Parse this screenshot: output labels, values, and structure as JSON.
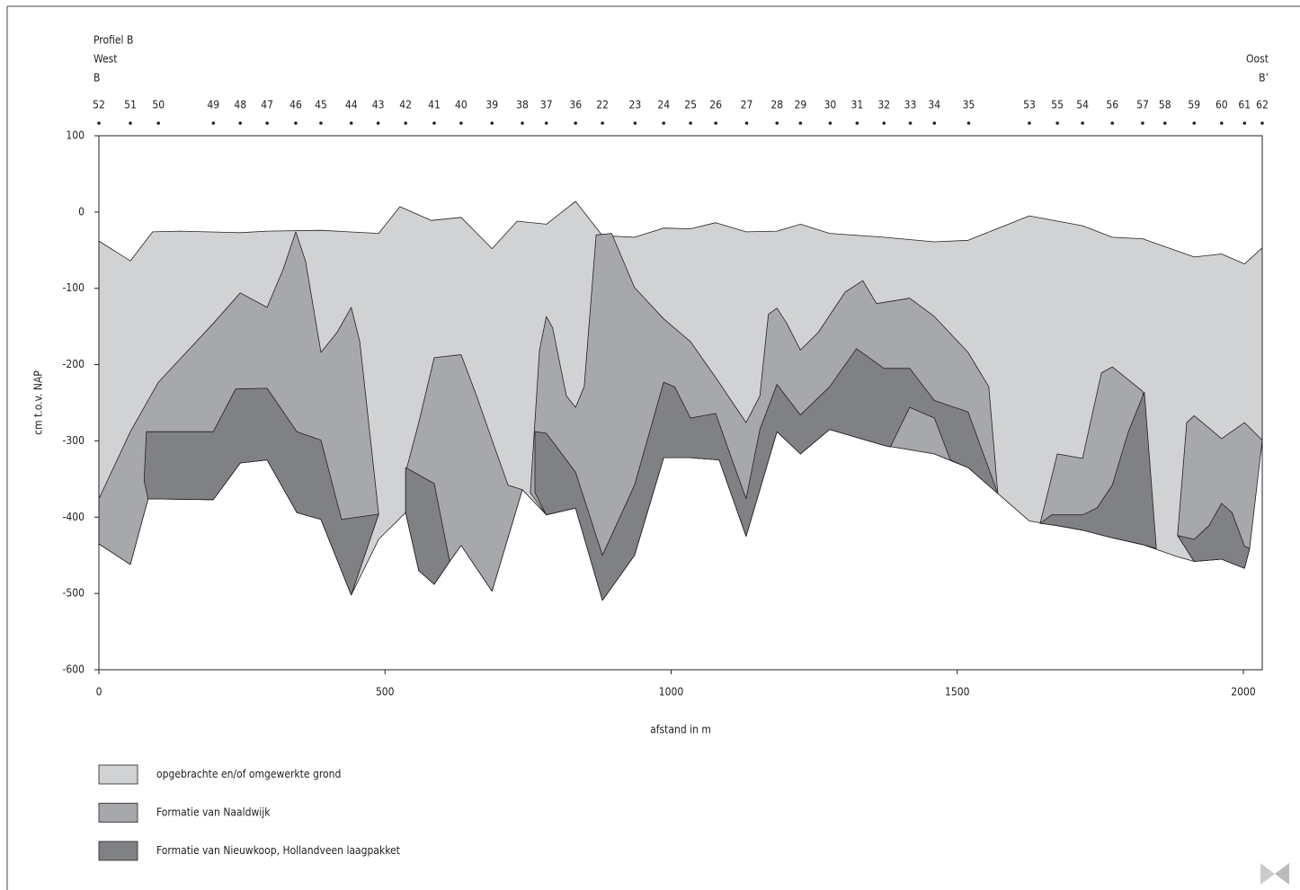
{
  "chart_data": {
    "type": "profile",
    "header": {
      "title": "Profiel B",
      "left_side": "West",
      "left_point": "B",
      "right_side": "Oost",
      "right_point": "B’"
    },
    "ylabel": "cm t.o.v. NAP",
    "xlabel": "afstand in m",
    "xlim": [
      0,
      2033
    ],
    "xticks": [
      0,
      500,
      1000,
      1500,
      2000
    ],
    "ylim": [
      -600,
      100
    ],
    "yticks": [
      100,
      0,
      -100,
      -200,
      -300,
      -400,
      -500,
      -600
    ],
    "boreholes": {
      "labels": [
        "52",
        "51",
        "50",
        "49",
        "48",
        "47",
        "46",
        "45",
        "44",
        "43",
        "42",
        "41",
        "40",
        "39",
        "38",
        "37",
        "36",
        "22",
        "23",
        "24",
        "25",
        "26",
        "27",
        "28",
        "29",
        "30",
        "31",
        "32",
        "33",
        "34",
        "35",
        "53",
        "55",
        "54",
        "56",
        "57",
        "58",
        "59",
        "60",
        "61",
        "62"
      ],
      "x": [
        0,
        55,
        104,
        200,
        247,
        294,
        344,
        388,
        441,
        488,
        536,
        586,
        633,
        687,
        740,
        782,
        833,
        880,
        937,
        987,
        1034,
        1078,
        1132,
        1185,
        1226,
        1278,
        1325,
        1372,
        1418,
        1460,
        1520,
        1626,
        1675,
        1719,
        1771,
        1824,
        1863,
        1914,
        1962,
        2002,
        2033
      ]
    },
    "series": [
      {
        "name": "opgebrachte en/of omgewerkte grond",
        "color": "#d1d2d4",
        "x": [
          0,
          55,
          94,
          141,
          247,
          294,
          388,
          489,
          526,
          581,
          633,
          687,
          731,
          782,
          833,
          880,
          936,
          987,
          1034,
          1078,
          1131,
          1185,
          1226,
          1277,
          1372,
          1460,
          1519,
          1626,
          1719,
          1771,
          1824,
          1914,
          1962,
          2002,
          2033,
          2033,
          2002,
          1962,
          1914,
          1885,
          1824,
          1771,
          1719,
          1626,
          1519,
          1460,
          1372,
          1277,
          1226,
          1185,
          1131,
          1084,
          1034,
          987,
          936,
          880,
          833,
          782,
          740,
          687,
          633,
          613,
          586,
          559,
          536,
          489,
          441,
          388,
          346,
          294,
          247,
          200,
          86,
          55,
          0
        ],
        "values": [
          -38,
          -64,
          -26,
          -25,
          -27,
          -25,
          -24,
          -28,
          7,
          -11,
          -7,
          -48,
          -12,
          -16,
          14,
          -31,
          -33,
          -21,
          -22,
          -14,
          -26,
          -25,
          -16,
          -28,
          -33,
          -39,
          -37,
          -5,
          -18,
          -33,
          -35,
          -59,
          -55,
          -68,
          -47,
          -299,
          -467,
          -455,
          -458,
          -452,
          -436,
          -427,
          -417,
          -405,
          -335,
          -317,
          -306,
          -285,
          -317,
          -288,
          -425,
          -325,
          -322,
          -322,
          -450,
          -509,
          -388,
          -397,
          -364,
          -497,
          -437,
          -458,
          -488,
          -470,
          -394,
          -429,
          -502,
          -403,
          -394,
          -325,
          -329,
          -377,
          -376,
          -462,
          -435
        ]
      },
      {
        "name": "Formatie van Naaldwijk",
        "color": "#a7a8ab",
        "x": [
          0,
          55,
          104,
          200,
          247,
          294,
          322,
          344,
          361,
          388,
          416,
          441,
          456,
          489,
          441,
          388,
          346,
          294,
          247,
          200,
          86,
          55,
          0,
          null,
          536,
          559,
          586,
          633,
          660,
          687,
          715,
          740,
          687,
          633,
          613,
          586,
          559,
          536,
          null,
          754,
          770,
          782,
          793,
          817,
          833,
          848,
          869,
          896,
          936,
          987,
          1034,
          1078,
          1131,
          1155,
          1170,
          1185,
          1202,
          1226,
          1257,
          1304,
          1335,
          1359,
          1417,
          1460,
          1519,
          1555,
          1571,
          1519,
          1460,
          1372,
          1277,
          1226,
          1185,
          1131,
          1084,
          1034,
          987,
          936,
          880,
          833,
          782,
          null,
          1645,
          1675,
          1719,
          1752,
          1771,
          1824,
          1846,
          1824,
          1771,
          1719,
          1675,
          null,
          1885,
          1901,
          1914,
          1962,
          2002,
          2033,
          2011,
          2002,
          1962,
          1914
        ],
        "values": [
          -376,
          -288,
          -223,
          -146,
          -106,
          -125,
          -75,
          -26,
          -64,
          -184,
          -158,
          -125,
          -170,
          -396,
          -502,
          -403,
          -394,
          -325,
          -329,
          -377,
          -376,
          -462,
          -435,
          null,
          -341,
          -276,
          -191,
          -187,
          -241,
          -299,
          -358,
          -364,
          -497,
          -437,
          -458,
          -488,
          -470,
          -394,
          null,
          -368,
          -181,
          -137,
          -152,
          -241,
          -256,
          -229,
          -30,
          -28,
          -99,
          -140,
          -170,
          -217,
          -276,
          -241,
          -134,
          -126,
          -146,
          -181,
          -158,
          -105,
          -90,
          -120,
          -113,
          -137,
          -184,
          -229,
          -369,
          -335,
          -317,
          -306,
          -285,
          -317,
          -288,
          -425,
          -325,
          -322,
          -322,
          -450,
          -509,
          -388,
          -397,
          null,
          -408,
          -317,
          -323,
          -211,
          -203,
          -235,
          -441,
          -436,
          -427,
          -417,
          -411,
          null,
          -424,
          -276,
          -267,
          -297,
          -276,
          -299,
          -441,
          -467,
          -455,
          -458
        ]
      },
      {
        "name": "Formatie van Nieuwkoop, Hollandveen laagpakket",
        "color": "#808184",
        "x": [
          83,
          200,
          239,
          294,
          346,
          388,
          424,
          489,
          441,
          388,
          346,
          294,
          247,
          200,
          86,
          79,
          null,
          536,
          586,
          613,
          586,
          559,
          536,
          null,
          762,
          782,
          833,
          880,
          936,
          987,
          1006,
          1034,
          1078,
          1100,
          1131,
          1155,
          1185,
          1226,
          1277,
          1324,
          1372,
          1417,
          1460,
          1519,
          1571,
          1519,
          1488,
          1460,
          1417,
          1383,
          1372,
          1277,
          1226,
          1185,
          1131,
          1084,
          1034,
          987,
          936,
          880,
          833,
          782,
          762,
          null,
          1645,
          1665,
          1719,
          1744,
          1771,
          1799,
          1827,
          1848,
          1824,
          1771,
          1719,
          1675,
          null,
          1885,
          1914,
          1940,
          1962,
          1980,
          2002,
          2011,
          2002,
          1962,
          1914
        ],
        "values": [
          -288,
          -288,
          -232,
          -231,
          -288,
          -299,
          -403,
          -396,
          -502,
          -403,
          -394,
          -325,
          -329,
          -377,
          -376,
          -352,
          null,
          -335,
          -356,
          -458,
          -488,
          -470,
          -394,
          null,
          -288,
          -290,
          -341,
          -450,
          -358,
          -223,
          -229,
          -270,
          -264,
          -311,
          -376,
          -285,
          -226,
          -266,
          -229,
          -179,
          -205,
          -205,
          -247,
          -262,
          -369,
          -335,
          -325,
          -270,
          -256,
          -308,
          -306,
          -285,
          -317,
          -288,
          -425,
          -325,
          -322,
          -322,
          -450,
          -509,
          -388,
          -397,
          -368,
          null,
          -408,
          -397,
          -397,
          -388,
          -358,
          -288,
          -236,
          -441,
          -436,
          -427,
          -417,
          -411,
          null,
          -424,
          -429,
          -411,
          -382,
          -394,
          -438,
          -441,
          -467,
          -455,
          -458
        ]
      }
    ]
  }
}
